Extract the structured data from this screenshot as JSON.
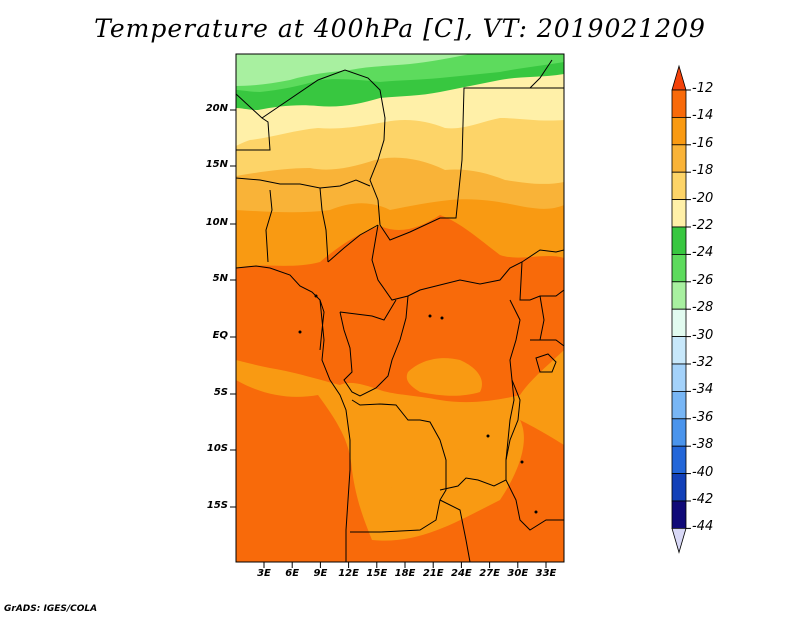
{
  "title": "Temperature at 400hPa [C], VT: 2019021209",
  "credit": "GrADS: IGES/COLA",
  "axes": {
    "lat_ticks": [
      "20N",
      "15N",
      "10N",
      "5N",
      "EQ",
      "5S",
      "10S",
      "15S"
    ],
    "lon_ticks": [
      "3E",
      "6E",
      "9E",
      "12E",
      "15E",
      "18E",
      "21E",
      "24E",
      "27E",
      "30E",
      "33E"
    ]
  },
  "colorbar": {
    "labels": [
      "-12",
      "-14",
      "-16",
      "-18",
      "-20",
      "-22",
      "-24",
      "-26",
      "-28",
      "-30",
      "-32",
      "-34",
      "-36",
      "-38",
      "-40",
      "-42",
      "-44"
    ],
    "colors": [
      "#f4420a",
      "#f86a0a",
      "#f99a12",
      "#f9b338",
      "#fdd468",
      "#fff0a8",
      "#38c740",
      "#5ddb5d",
      "#a8f0a0",
      "#e2fbf0",
      "#c8e8fb",
      "#a4d2fa",
      "#78b6f5",
      "#4a94ec",
      "#2366d8",
      "#1240b8",
      "#100a78",
      "#d8d8f6"
    ]
  },
  "map_colors": {
    "band_m14": "#f86a0a",
    "band_m16": "#f99a12",
    "band_m18": "#f9b338",
    "band_m20": "#fdd468",
    "band_m22": "#fff0a8",
    "band_m24": "#38c740",
    "band_m26": "#5ddb5d",
    "band_m28": "#a8f0a0"
  }
}
